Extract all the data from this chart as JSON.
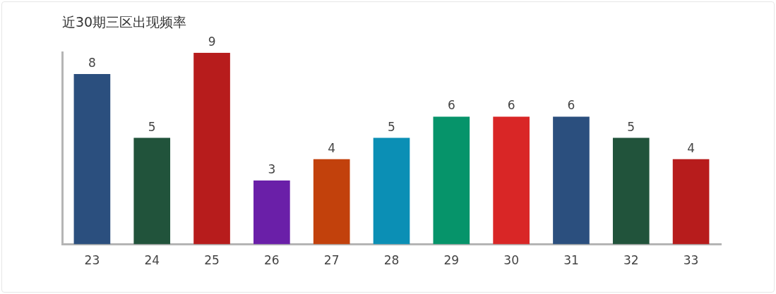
{
  "chart_data": {
    "type": "bar",
    "title": "近30期三区出现频率",
    "categories": [
      "23",
      "24",
      "25",
      "26",
      "27",
      "28",
      "29",
      "30",
      "31",
      "32",
      "33"
    ],
    "values": [
      8,
      5,
      9,
      3,
      4,
      5,
      6,
      6,
      6,
      5,
      4
    ],
    "colors": [
      "#2b4f7e",
      "#21533b",
      "#b71c1c",
      "#6a1fa8",
      "#c2410c",
      "#0b8fb5",
      "#06946a",
      "#d92626",
      "#2b4f7e",
      "#21533b",
      "#b71c1c"
    ],
    "data_labels": true,
    "grid": false,
    "legend": false,
    "tick_labels": "x"
  }
}
